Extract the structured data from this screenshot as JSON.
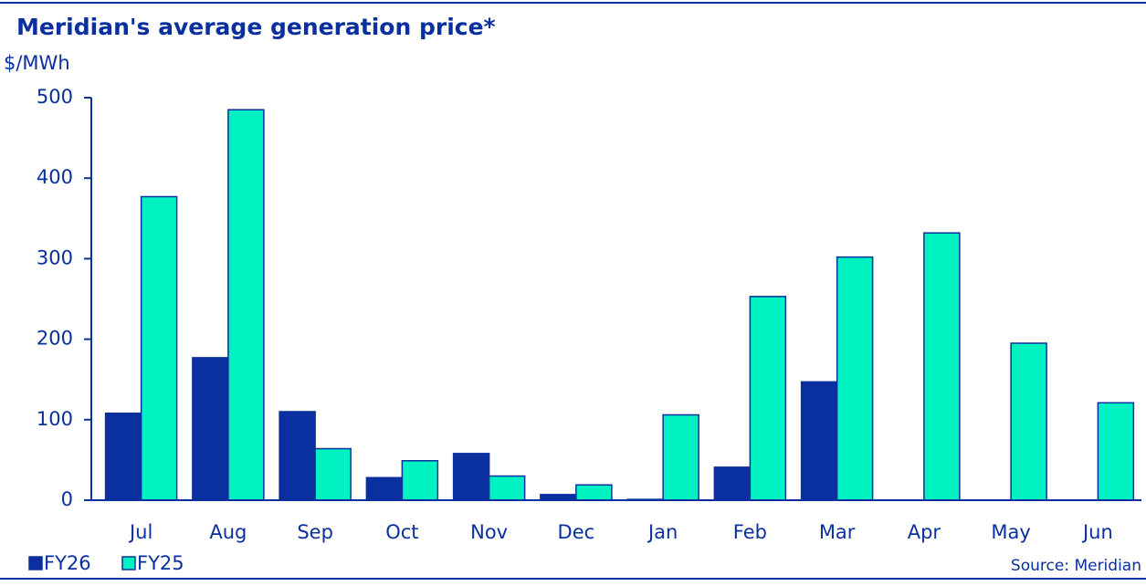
{
  "chart_data": {
    "type": "bar",
    "title": "Meridian's average generation price*",
    "y_label": "$/MWh",
    "source": "Source: Meridian",
    "categories": [
      "Jul",
      "Aug",
      "Sep",
      "Oct",
      "Nov",
      "Dec",
      "Jan",
      "Feb",
      "Mar",
      "Apr",
      "May",
      "Jun"
    ],
    "series": [
      {
        "name": "FY26",
        "color": "#0a2f9e",
        "values": [
          108,
          177,
          110,
          28,
          58,
          7,
          1,
          41,
          147,
          null,
          null,
          null
        ]
      },
      {
        "name": "FY25",
        "color": "#00f2c3",
        "values": [
          377,
          485,
          64,
          49,
          30,
          19,
          106,
          253,
          302,
          332,
          195,
          121
        ]
      }
    ],
    "ylim": [
      0,
      500
    ],
    "yticks": [
      0,
      100,
      200,
      300,
      400,
      500
    ]
  }
}
